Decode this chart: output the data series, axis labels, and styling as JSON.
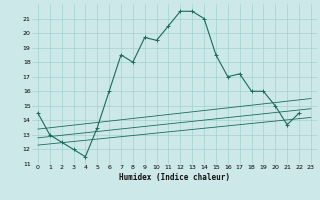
{
  "title": "",
  "xlabel": "Humidex (Indice chaleur)",
  "bg_color": "#cce8e8",
  "grid_color": "#99cccc",
  "line_color": "#1a6b5a",
  "xlim": [
    -0.5,
    23.5
  ],
  "ylim": [
    11,
    22
  ],
  "xticks": [
    0,
    1,
    2,
    3,
    4,
    5,
    6,
    7,
    8,
    9,
    10,
    11,
    12,
    13,
    14,
    15,
    16,
    17,
    18,
    19,
    20,
    21,
    22,
    23
  ],
  "yticks": [
    11,
    12,
    13,
    14,
    15,
    16,
    17,
    18,
    19,
    20,
    21
  ],
  "series1_x": [
    0,
    1,
    2,
    3,
    4,
    5,
    6,
    7,
    8,
    9,
    10,
    11,
    12,
    13,
    14,
    15,
    16,
    17,
    18,
    19,
    20,
    21,
    22
  ],
  "series1_y": [
    14.5,
    13.0,
    12.5,
    12.0,
    11.5,
    13.5,
    16.0,
    18.5,
    18.0,
    19.7,
    19.5,
    20.5,
    21.5,
    21.5,
    21.0,
    18.5,
    17.0,
    17.2,
    16.0,
    16.0,
    15.0,
    13.7,
    14.5
  ],
  "line2_x": [
    0,
    23
  ],
  "line2_y": [
    12.3,
    14.2
  ],
  "line3_x": [
    0,
    23
  ],
  "line3_y": [
    12.8,
    14.8
  ],
  "line4_x": [
    0,
    23
  ],
  "line4_y": [
    13.4,
    15.5
  ]
}
